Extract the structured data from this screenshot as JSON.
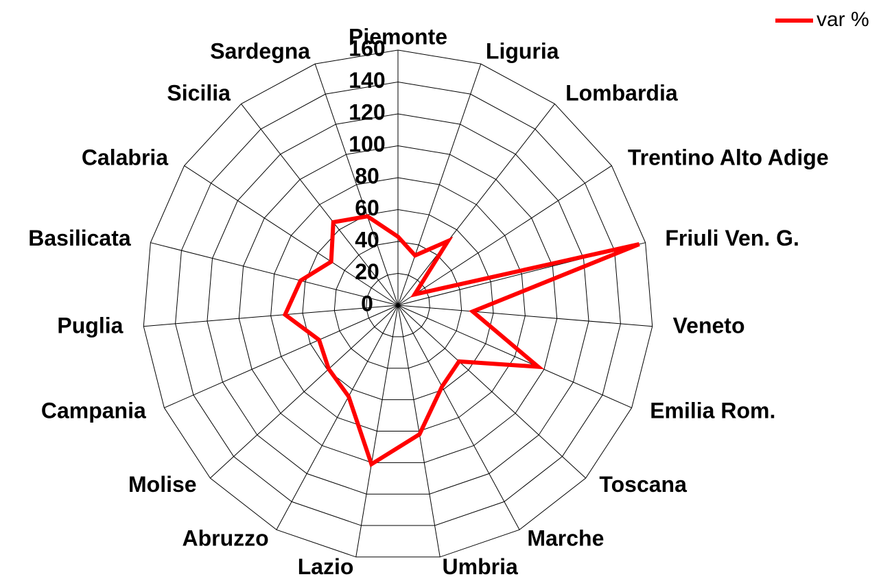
{
  "chart_data": {
    "type": "radar",
    "categories": [
      "Piemonte",
      "Liguria",
      "Lombardia",
      "Trentino Alto Adige",
      "Friuli Ven. G.",
      "Veneto",
      "Emilia Rom.",
      "Toscana",
      "Marche",
      "Umbria",
      "Lazio",
      "Abruzzo",
      "Molise",
      "Campania",
      "Puglia",
      "Basilicata",
      "Calabria",
      "Sicilia",
      "Sardegna"
    ],
    "series": [
      {
        "name": "var %",
        "color": "#ff0000",
        "values": [
          43,
          33,
          51,
          12.5,
          156,
          47,
          96,
          52,
          58,
          82,
          101,
          65,
          59,
          54,
          71,
          63,
          50,
          66,
          59
        ]
      }
    ],
    "ylim": [
      0,
      160
    ],
    "yticks": [
      0,
      20,
      40,
      60,
      80,
      100,
      120,
      140,
      160
    ],
    "grid": true,
    "legend": "top-right"
  }
}
